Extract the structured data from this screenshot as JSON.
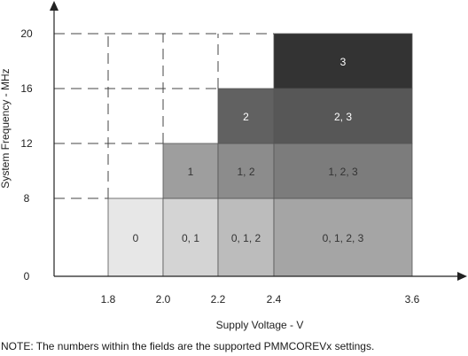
{
  "chart_data": {
    "type": "heatmap",
    "xlabel": "Supply Voltage - V",
    "ylabel": "System Frequency - MHz",
    "x_ticks": [
      "1.8",
      "2.0",
      "2.2",
      "2.4",
      "3.6"
    ],
    "y_ticks": [
      "0",
      "8",
      "12",
      "16",
      "20"
    ],
    "x_columns": [
      1.8,
      2.0,
      2.2,
      2.4,
      3.6
    ],
    "y_rows": [
      0,
      8,
      12,
      16,
      20
    ],
    "regions": [
      {
        "label": "0",
        "col": 0,
        "row": 0,
        "color": "#e7e7e7"
      },
      {
        "label": "0, 1",
        "col": 1,
        "row": 0,
        "color": "#d4d4d4"
      },
      {
        "label": "0, 1, 2",
        "col": 2,
        "row": 0,
        "color": "#bcbcbc"
      },
      {
        "label": "0, 1, 2, 3",
        "col": 3,
        "row": 0,
        "color": "#a5a5a5"
      },
      {
        "label": "1",
        "col": 1,
        "row": 1,
        "color": "#9e9e9e"
      },
      {
        "label": "1, 2",
        "col": 2,
        "row": 1,
        "color": "#8c8c8c"
      },
      {
        "label": "1, 2, 3",
        "col": 3,
        "row": 1,
        "color": "#7c7c7c"
      },
      {
        "label": "2",
        "col": 2,
        "row": 2,
        "color": "#616161"
      },
      {
        "label": "2, 3",
        "col": 3,
        "row": 2,
        "color": "#575757"
      },
      {
        "label": "3",
        "col": 3,
        "row": 3,
        "color": "#333333"
      }
    ],
    "grid": "dashed guide lines"
  },
  "note": "NOTE: The numbers within the fields are the supported PMMCOREVx settings."
}
